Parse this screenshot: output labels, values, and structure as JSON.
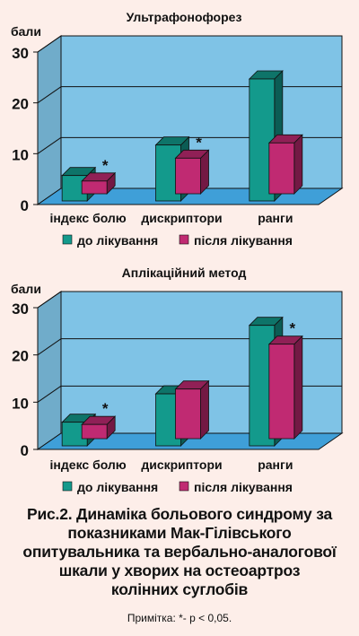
{
  "colors": {
    "background": "#fdeee9",
    "wall": "#7fc3e6",
    "floor": "#3f9fd8",
    "before": "#139a8c",
    "after": "#c02a72"
  },
  "chart_data": [
    {
      "type": "bar",
      "title": "Ультрафонофорез",
      "ylabel": "бали",
      "ylim": [
        0,
        30
      ],
      "yticks": [
        "0",
        "10",
        "20",
        "30"
      ],
      "categories": [
        "індекс болю",
        "дискриптори",
        "ранги"
      ],
      "series": [
        {
          "name": "до лікування",
          "values": [
            5,
            11,
            24
          ]
        },
        {
          "name": "після лікування",
          "values": [
            2.5,
            7,
            10
          ]
        }
      ],
      "annotations": [
        "*",
        "*",
        ""
      ],
      "grid": true,
      "legend_position": "bottom"
    },
    {
      "type": "bar",
      "title": "Аплікаційний метод",
      "ylabel": "бали",
      "ylim": [
        0,
        30
      ],
      "yticks": [
        "0",
        "10",
        "20",
        "30"
      ],
      "categories": [
        "індекс болю",
        "дискриптори",
        "ранги"
      ],
      "series": [
        {
          "name": "до лікування",
          "values": [
            5,
            11,
            25.5
          ]
        },
        {
          "name": "після лікування",
          "values": [
            3,
            10.5,
            20
          ]
        }
      ],
      "annotations": [
        "*",
        "",
        "*"
      ],
      "grid": true,
      "legend_position": "bottom"
    }
  ],
  "caption": {
    "lines": [
      "Рис.2. Динаміка больового синдрому за",
      "показниками Мак-Гілівського",
      "опитувальника та вербально-аналогової",
      "шкали у хворих на остеоартроз",
      "колінних суглобів"
    ],
    "note": "Примітка: *- р < 0,05."
  }
}
